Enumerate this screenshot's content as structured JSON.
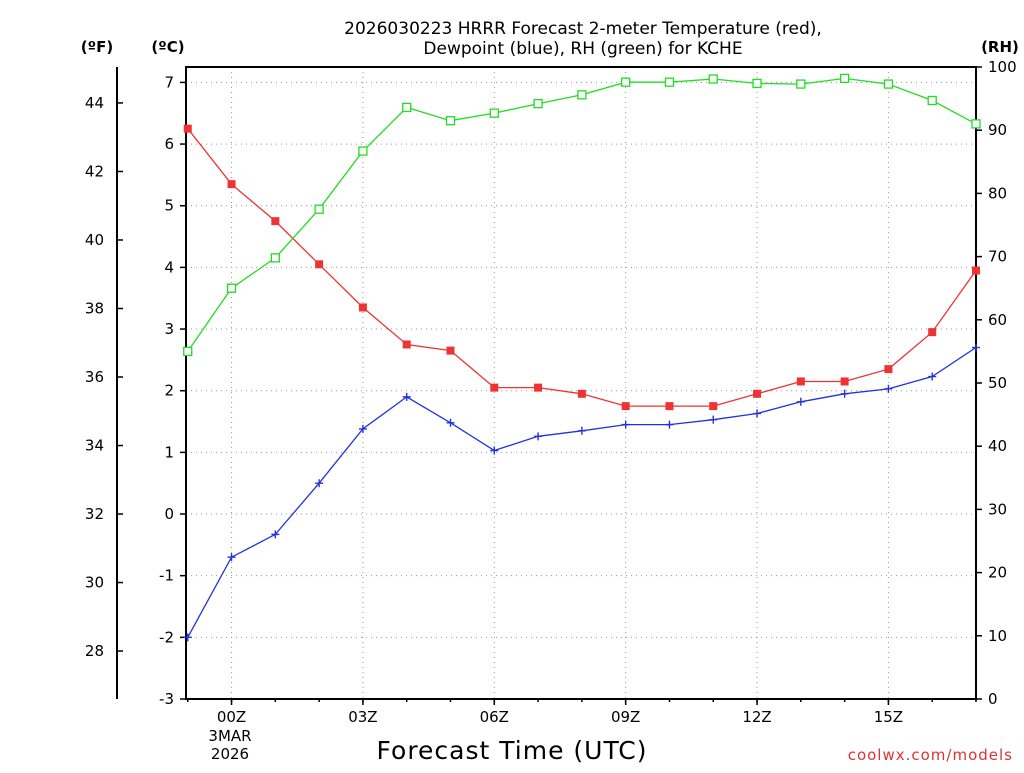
{
  "chart_data": {
    "type": "line",
    "title_line1": "2026030223 HRRR Forecast 2-meter Temperature (red),",
    "title_line2": "Dewpoint (blue), RH (green) for KCHE",
    "xlabel": "Forecast Time (UTC)",
    "credit": "coolwx.com/models",
    "units": {
      "fahrenheit": "(ºF)",
      "celsius": "(ºC)",
      "rh": "(RH)"
    },
    "x_hours": [
      23,
      24,
      25,
      26,
      27,
      28,
      29,
      30,
      31,
      32,
      33,
      34,
      35,
      36,
      37,
      38,
      39,
      40,
      41
    ],
    "xlim": [
      22.96,
      41
    ],
    "x_ticks": [
      {
        "hour": 24,
        "label": "00Z"
      },
      {
        "hour": 27,
        "label": "03Z"
      },
      {
        "hour": 30,
        "label": "06Z"
      },
      {
        "hour": 33,
        "label": "09Z"
      },
      {
        "hour": 36,
        "label": "12Z"
      },
      {
        "hour": 39,
        "label": "15Z"
      }
    ],
    "date_label_line1": "3MAR",
    "date_label_line2": "2026",
    "celsius_ticks": [
      "-3",
      "-2",
      "-1",
      "0",
      "1",
      "2",
      "3",
      "4",
      "5",
      "6",
      "7"
    ],
    "celsius_lim": [
      -3,
      7.25
    ],
    "fahrenheit_ticks": [
      "28",
      "30",
      "32",
      "34",
      "36",
      "38",
      "40",
      "42",
      "44"
    ],
    "rh_ticks": [
      "0",
      "10",
      "20",
      "30",
      "40",
      "50",
      "60",
      "70",
      "80",
      "90",
      "100"
    ],
    "rh_lim": [
      0,
      100
    ],
    "series": [
      {
        "name": "Temperature",
        "axis": "celsius",
        "color": "#ee3333",
        "marker": "filled-square",
        "values": [
          6.25,
          5.35,
          4.75,
          4.05,
          3.35,
          2.75,
          2.65,
          2.05,
          2.05,
          1.95,
          1.75,
          1.75,
          1.75,
          1.95,
          2.15,
          2.15,
          2.35,
          2.95,
          3.95
        ]
      },
      {
        "name": "Dewpoint",
        "axis": "celsius",
        "color": "#2233dd",
        "marker": "plus",
        "values": [
          -2.0,
          -0.7,
          -0.33,
          0.5,
          1.38,
          1.9,
          1.48,
          1.03,
          1.26,
          1.35,
          1.45,
          1.45,
          1.53,
          1.63,
          1.82,
          1.95,
          2.03,
          2.23,
          2.7
        ]
      },
      {
        "name": "RH",
        "axis": "rh",
        "color": "#22dd22",
        "marker": "open-square",
        "values": [
          55.0,
          65.0,
          69.8,
          77.5,
          86.7,
          93.6,
          91.5,
          92.7,
          94.2,
          95.6,
          97.6,
          97.6,
          98.1,
          97.4,
          97.3,
          98.2,
          97.3,
          94.7,
          91.0
        ]
      }
    ]
  }
}
